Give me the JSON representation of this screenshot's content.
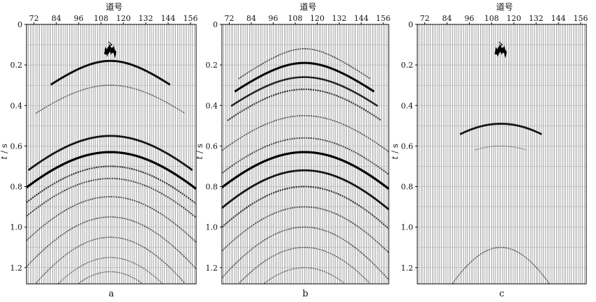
{
  "chart_data": [
    {
      "type": "seismic-gather",
      "panel_label": "a",
      "xlabel": "道号",
      "ylabel_var": "t",
      "ylabel_unit": "s",
      "x_ticks": [
        72,
        84,
        96,
        108,
        120,
        132,
        144,
        156
      ],
      "y_ticks": [
        "0",
        "0.2",
        "0.4",
        "0.6",
        "0.8",
        "1.0",
        "1.2"
      ],
      "xlim": [
        68,
        159
      ],
      "ylim": [
        0,
        1.28
      ],
      "apex_trace": 113,
      "direct_arrival": {
        "t0": 0.12,
        "halfwidth_traces": 3
      },
      "events": [
        {
          "t0": 0.18,
          "velocity_index": 1.35,
          "amplitude": 0.9,
          "visible_halfwidth": 32
        },
        {
          "t0": 0.3,
          "velocity_index": 1.25,
          "amplitude": 0.35,
          "visible_halfwidth": 40
        },
        {
          "t0": 0.55,
          "velocity_index": 0.95,
          "amplitude": 0.85,
          "visible_halfwidth": 44
        },
        {
          "t0": 0.63,
          "velocity_index": 0.9,
          "amplitude": 1.0,
          "visible_halfwidth": 48
        },
        {
          "t0": 0.7,
          "velocity_index": 0.85,
          "amplitude": 0.6,
          "visible_halfwidth": 50
        },
        {
          "t0": 0.76,
          "velocity_index": 0.8,
          "amplitude": 0.5,
          "visible_halfwidth": 50
        },
        {
          "t0": 0.85,
          "velocity_index": 0.7,
          "amplitude": 0.45,
          "visible_halfwidth": 50
        },
        {
          "t0": 0.95,
          "velocity_index": 0.62,
          "amplitude": 0.4,
          "visible_halfwidth": 50
        },
        {
          "t0": 1.05,
          "velocity_index": 0.55,
          "amplitude": 0.35,
          "visible_halfwidth": 50
        },
        {
          "t0": 1.15,
          "velocity_index": 0.5,
          "amplitude": 0.3,
          "visible_halfwidth": 50
        },
        {
          "t0": 1.22,
          "velocity_index": 0.45,
          "amplitude": 0.3,
          "visible_halfwidth": 50
        }
      ]
    },
    {
      "type": "seismic-gather",
      "panel_label": "b",
      "xlabel": "道号",
      "ylabel_var": "t",
      "ylabel_unit": "s",
      "x_ticks": [
        72,
        84,
        96,
        108,
        120,
        132,
        144,
        156
      ],
      "y_ticks": [
        "0",
        "0.2",
        "0.4",
        "0.6",
        "0.8",
        "1.0",
        "1.2"
      ],
      "xlim": [
        68,
        159
      ],
      "ylim": [
        0,
        1.28
      ],
      "apex_trace": 113,
      "direct_arrival": null,
      "events": [
        {
          "t0": 0.12,
          "velocity_index": 1.5,
          "amplitude": 0.45,
          "visible_halfwidth": 36
        },
        {
          "t0": 0.19,
          "velocity_index": 1.4,
          "amplitude": 0.95,
          "visible_halfwidth": 38
        },
        {
          "t0": 0.26,
          "velocity_index": 1.3,
          "amplitude": 0.75,
          "visible_halfwidth": 40
        },
        {
          "t0": 0.32,
          "velocity_index": 1.2,
          "amplitude": 0.6,
          "visible_halfwidth": 42
        },
        {
          "t0": 0.45,
          "velocity_index": 1.05,
          "amplitude": 0.4,
          "visible_halfwidth": 46
        },
        {
          "t0": 0.56,
          "velocity_index": 0.95,
          "amplitude": 0.5,
          "visible_halfwidth": 48
        },
        {
          "t0": 0.63,
          "velocity_index": 0.9,
          "amplitude": 1.0,
          "visible_halfwidth": 50
        },
        {
          "t0": 0.72,
          "velocity_index": 0.82,
          "amplitude": 0.85,
          "visible_halfwidth": 50
        },
        {
          "t0": 0.8,
          "velocity_index": 0.75,
          "amplitude": 0.6,
          "visible_halfwidth": 50
        },
        {
          "t0": 0.9,
          "velocity_index": 0.68,
          "amplitude": 0.45,
          "visible_halfwidth": 50
        },
        {
          "t0": 1.0,
          "velocity_index": 0.6,
          "amplitude": 0.4,
          "visible_halfwidth": 50
        },
        {
          "t0": 1.1,
          "velocity_index": 0.55,
          "amplitude": 0.35,
          "visible_halfwidth": 50
        },
        {
          "t0": 1.2,
          "velocity_index": 0.5,
          "amplitude": 0.3,
          "visible_halfwidth": 50
        }
      ]
    },
    {
      "type": "seismic-gather",
      "panel_label": "c",
      "xlabel": "道号",
      "ylabel_var": "t",
      "ylabel_unit": "s",
      "x_ticks": [
        72,
        84,
        96,
        108,
        120,
        132,
        144,
        156
      ],
      "y_ticks": [
        "0",
        "0.2",
        "0.4",
        "0.6",
        "0.8",
        "1.0",
        "1.2"
      ],
      "xlim": [
        68,
        159
      ],
      "ylim": [
        0,
        1.28
      ],
      "apex_trace": 113,
      "direct_arrival": {
        "t0": 0.12,
        "halfwidth_traces": 3
      },
      "events": [
        {
          "t0": 0.49,
          "velocity_index": 0.95,
          "amplitude": 0.85,
          "visible_halfwidth": 22
        },
        {
          "t0": 0.6,
          "velocity_index": 0.9,
          "amplitude": 0.2,
          "visible_halfwidth": 14
        },
        {
          "t0": 1.1,
          "velocity_index": 0.4,
          "amplitude": 0.35,
          "visible_halfwidth": 50
        }
      ]
    }
  ]
}
